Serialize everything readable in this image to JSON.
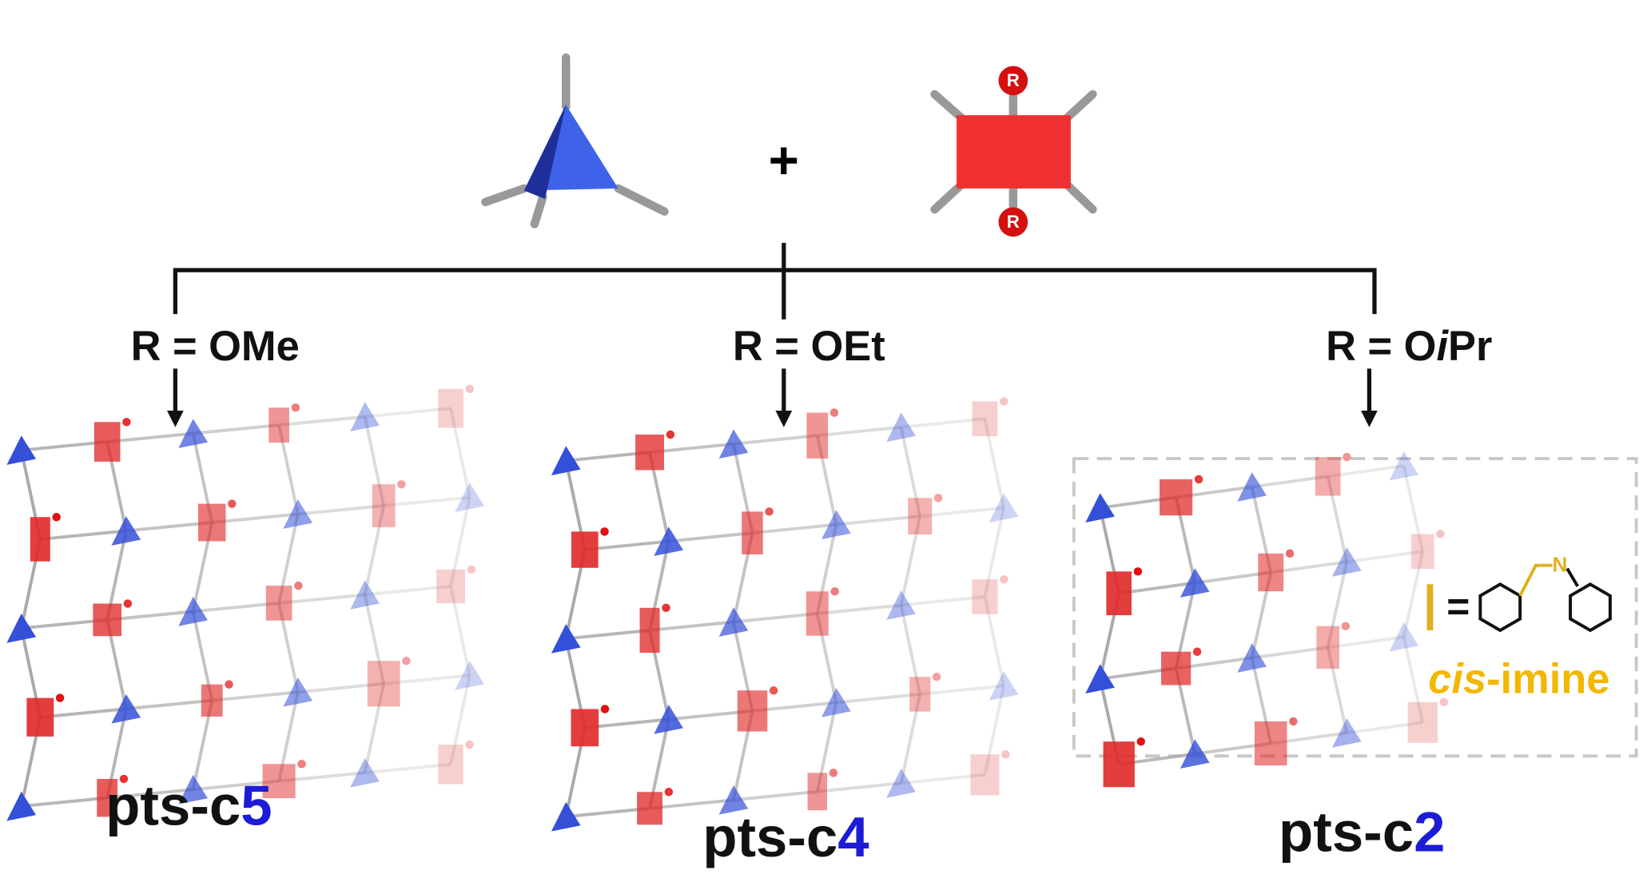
{
  "reaction": {
    "plus": "+",
    "substituent_label": "R"
  },
  "branches": [
    {
      "condition": {
        "lhs": "R",
        "eq": "=",
        "rhs": "OMe"
      },
      "product": {
        "prefix": "pts-c",
        "number": "5"
      }
    },
    {
      "condition": {
        "lhs": "R",
        "eq": "=",
        "rhs": "OEt"
      },
      "product": {
        "prefix": "pts-c",
        "number": "4"
      }
    },
    {
      "condition": {
        "lhs": "R",
        "eq": "=",
        "rhs_pre": "O",
        "rhs_italic": "i",
        "rhs_post": "Pr"
      },
      "product": {
        "prefix": "pts-c",
        "number": "2"
      }
    }
  ],
  "legend": {
    "equals": "=",
    "atom": "N",
    "name_italic": "cis",
    "name_rest": "-imine"
  }
}
